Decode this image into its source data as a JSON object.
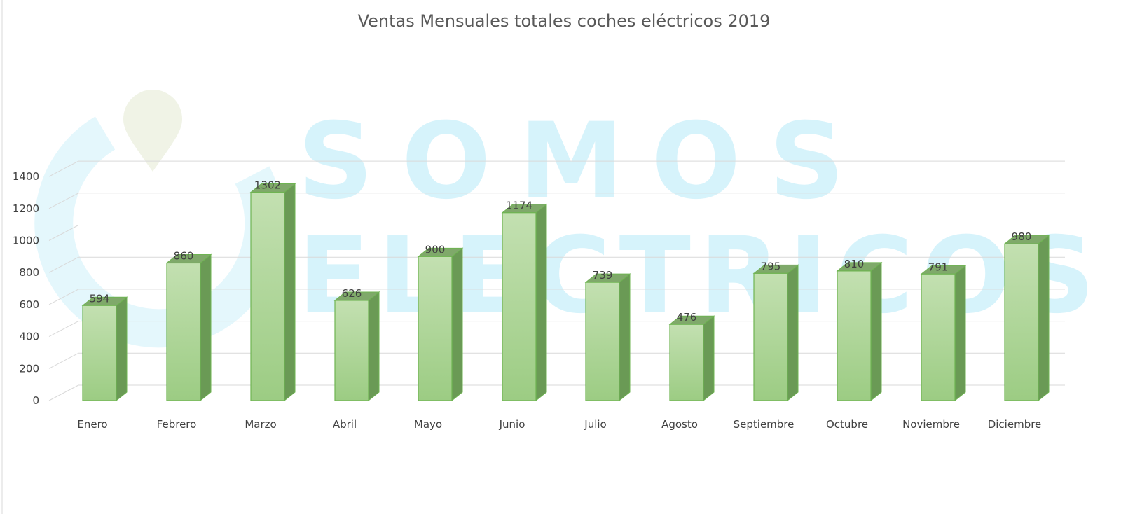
{
  "chart_data": {
    "type": "bar",
    "title": "Ventas Mensuales totales coches eléctricos 2019",
    "categories": [
      "Enero",
      "Febrero",
      "Marzo",
      "Abril",
      "Mayo",
      "Junio",
      "Julio",
      "Agosto",
      "Septiembre",
      "Octubre",
      "Noviembre",
      "Diciembre"
    ],
    "values": [
      594,
      860,
      1302,
      626,
      900,
      1174,
      739,
      476,
      795,
      810,
      791,
      980
    ],
    "yticks": [
      0,
      200,
      400,
      600,
      800,
      1000,
      1200,
      1400
    ],
    "ylim": [
      0,
      1400
    ],
    "grid": true,
    "legend": "none",
    "bar_color": "#9ccc83",
    "bar_color_light": "#c3e0b1",
    "bar_side_color": "#6a9a55",
    "bar_top_color": "#7fa96a",
    "bar_edge_color": "#6fb452"
  },
  "watermark": {
    "line1": "SOMOS",
    "line2": "ELECTRICOS",
    "color": "#d6f3fb"
  }
}
